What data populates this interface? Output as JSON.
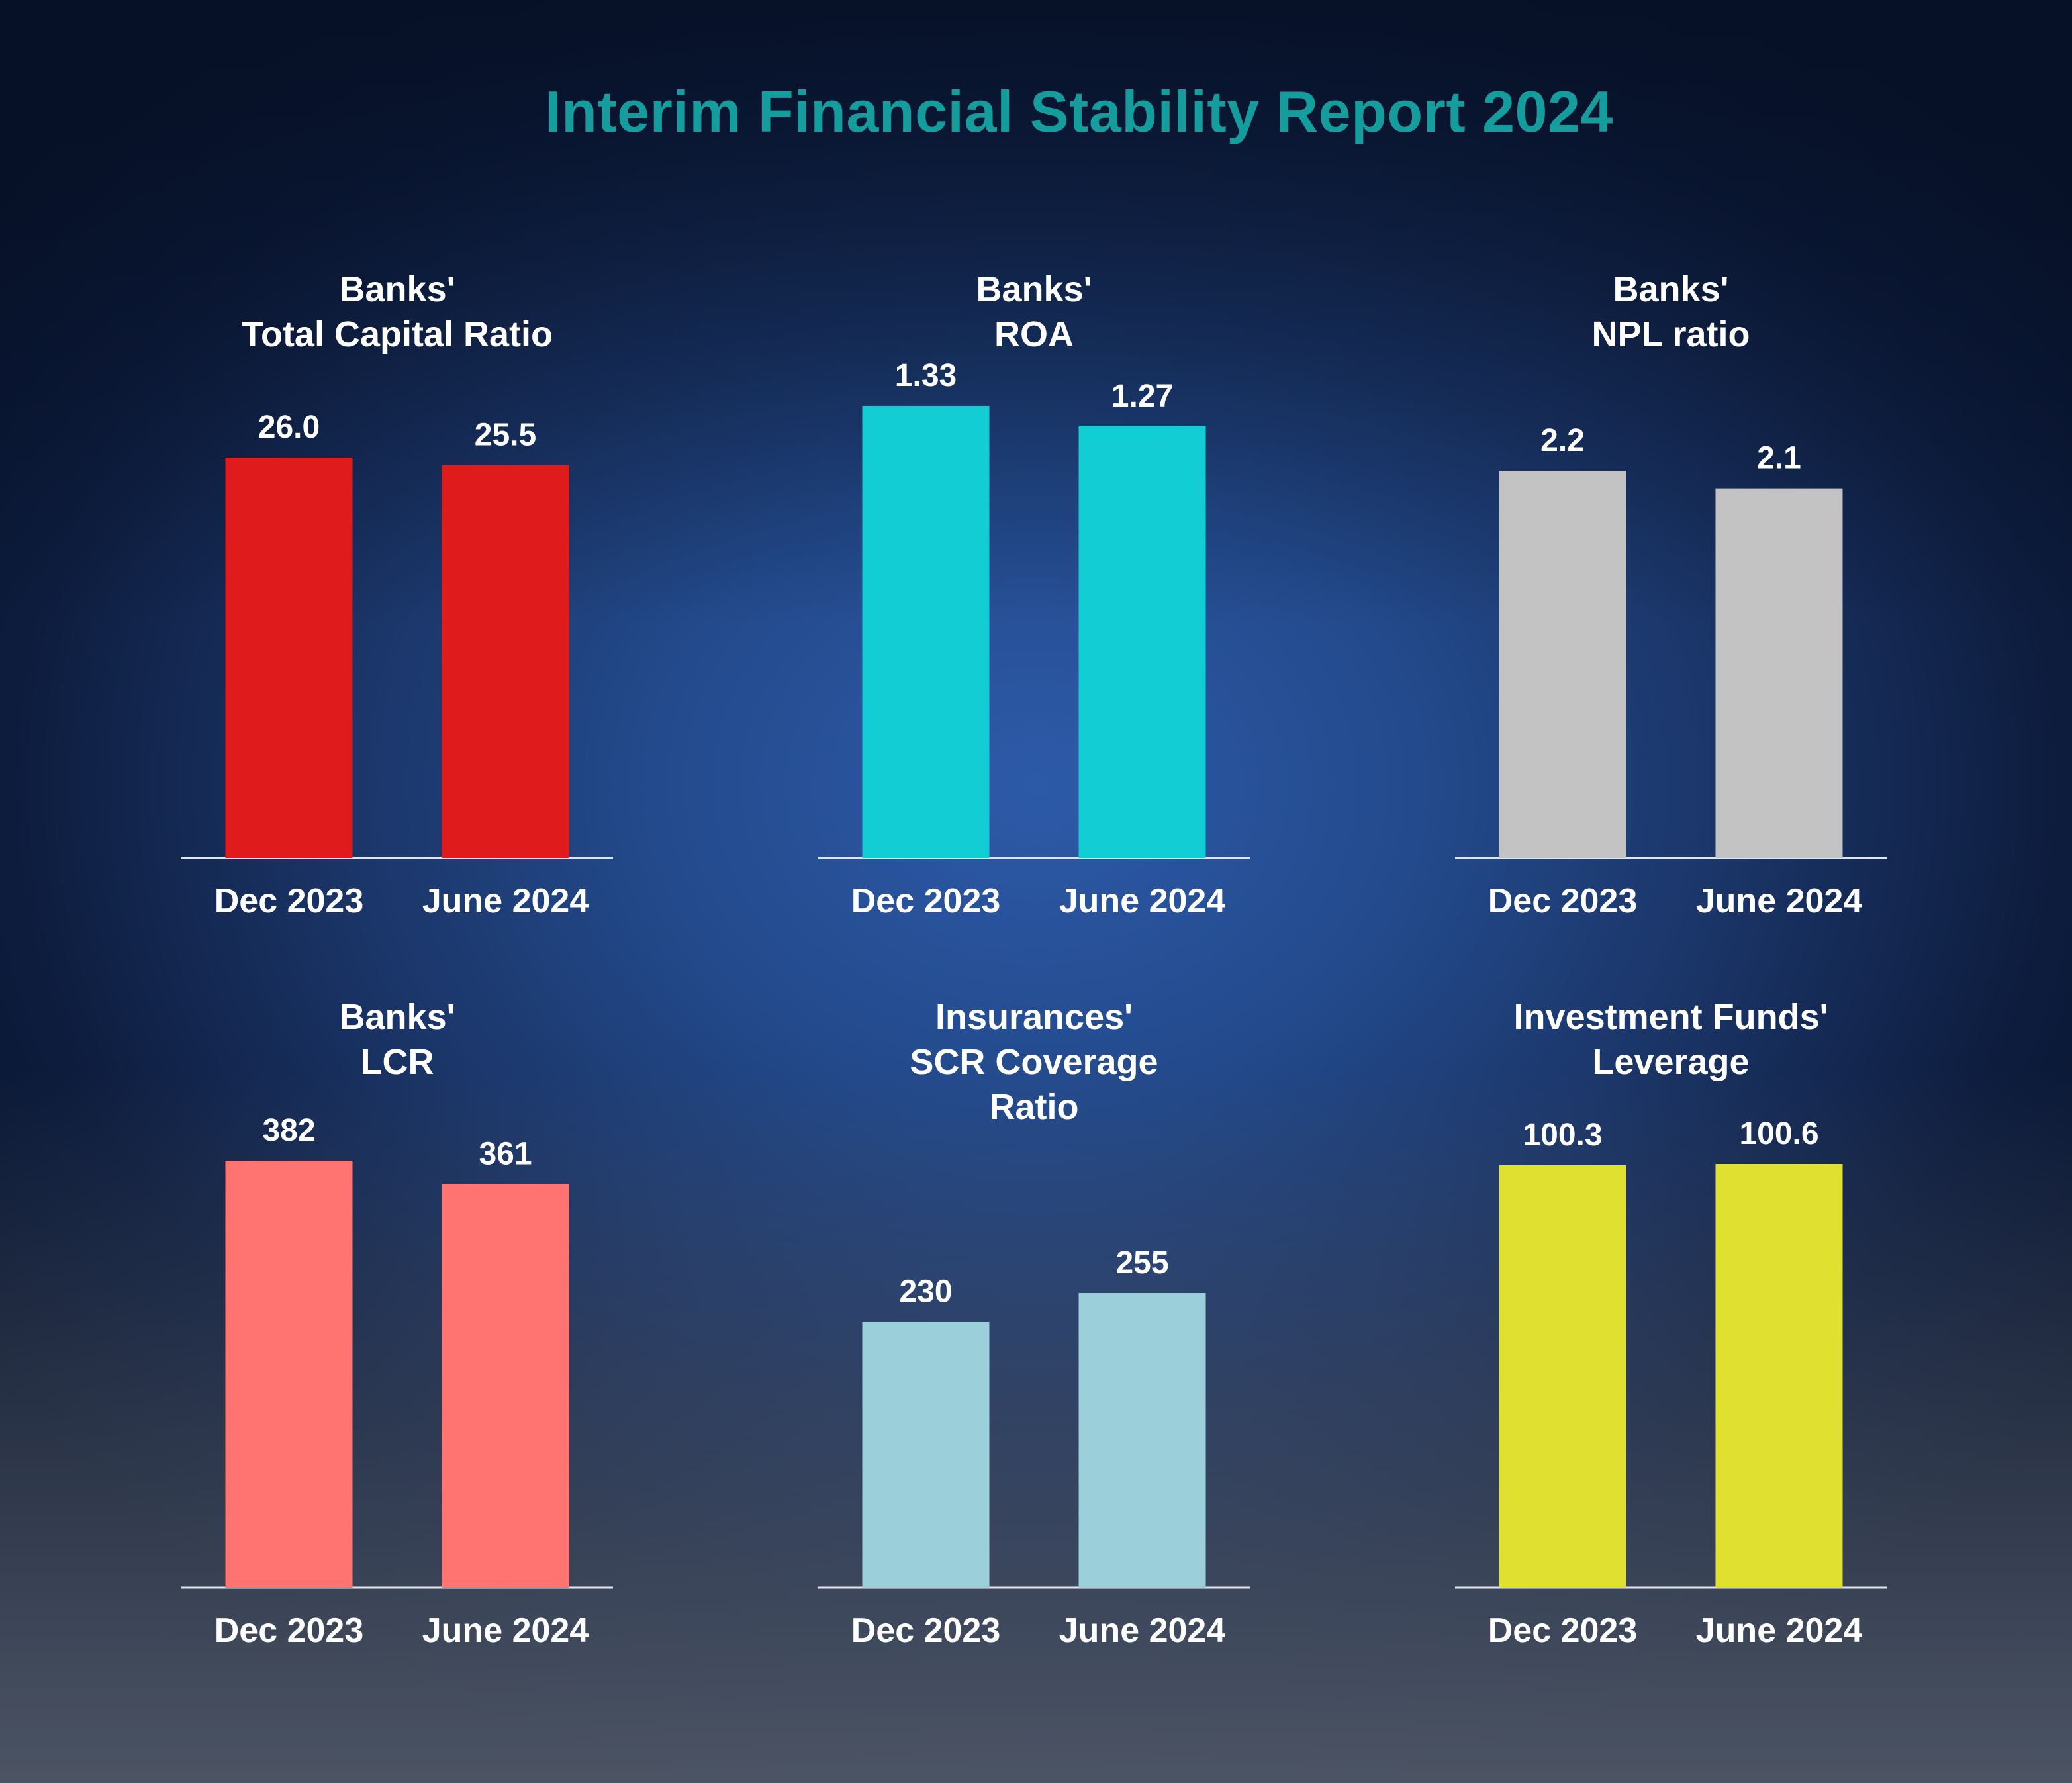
{
  "title": "Interim Financial Stability Report 2024",
  "chart_data": [
    {
      "type": "bar",
      "title_lines": [
        "Banks'",
        "Total Capital Ratio"
      ],
      "categories": [
        "Dec 2023",
        "June 2024"
      ],
      "values": [
        26.0,
        25.5
      ],
      "value_labels": [
        "26.0",
        "25.5"
      ],
      "color": "#e01b1b"
    },
    {
      "type": "bar",
      "title_lines": [
        "Banks'",
        "ROA"
      ],
      "categories": [
        "Dec 2023",
        "June 2024"
      ],
      "values": [
        1.33,
        1.27
      ],
      "value_labels": [
        "1.33",
        "1.27"
      ],
      "color": "#12cdd4"
    },
    {
      "type": "bar",
      "title_lines": [
        "Banks'",
        "NPL ratio"
      ],
      "categories": [
        "Dec 2023",
        "June 2024"
      ],
      "values": [
        2.2,
        2.1
      ],
      "value_labels": [
        "2.2",
        "2.1"
      ],
      "color": "#c3c3c3"
    },
    {
      "type": "bar",
      "title_lines": [
        "Banks'",
        "LCR"
      ],
      "categories": [
        "Dec 2023",
        "June 2024"
      ],
      "values": [
        382,
        361
      ],
      "value_labels": [
        "382",
        "361"
      ],
      "color": "#ff7370"
    },
    {
      "type": "bar",
      "title_lines": [
        "Insurances'",
        "SCR Coverage",
        "Ratio"
      ],
      "categories": [
        "Dec 2023",
        "June 2024"
      ],
      "values": [
        230,
        255
      ],
      "value_labels": [
        "230",
        "255"
      ],
      "color": "#9bcfd9"
    },
    {
      "type": "bar",
      "title_lines": [
        "Investment Funds'",
        "Leverage"
      ],
      "categories": [
        "Dec 2023",
        "June 2024"
      ],
      "values": [
        100.3,
        100.6
      ],
      "value_labels": [
        "100.3",
        "100.6"
      ],
      "color": "#e0e030"
    }
  ]
}
